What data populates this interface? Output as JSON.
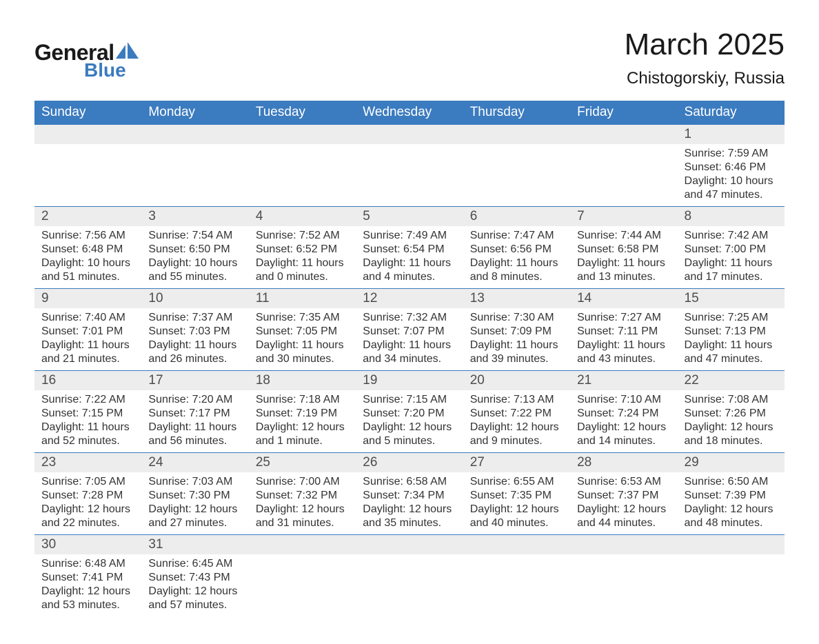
{
  "brand": {
    "name_part1": "General",
    "name_part2": "Blue",
    "logo_color": "#3b7bbf",
    "text_color": "#1a1a1a"
  },
  "title": {
    "month_year": "March 2025",
    "location": "Chistogorskiy, Russia",
    "title_fontsize": 44,
    "location_fontsize": 24
  },
  "colors": {
    "header_bg": "#3b7bbf",
    "header_text": "#ffffff",
    "daynum_bg": "#ededed",
    "daynum_text": "#4d4d4d",
    "body_text": "#333333",
    "row_border": "#3b7bbf",
    "page_bg": "#ffffff"
  },
  "weekdays": [
    "Sunday",
    "Monday",
    "Tuesday",
    "Wednesday",
    "Thursday",
    "Friday",
    "Saturday"
  ],
  "labels": {
    "sunrise": "Sunrise:",
    "sunset": "Sunset:",
    "daylight": "Daylight:"
  },
  "weeks": [
    [
      null,
      null,
      null,
      null,
      null,
      null,
      {
        "day": "1",
        "sunrise": "7:59 AM",
        "sunset": "6:46 PM",
        "daylight": "10 hours and 47 minutes."
      }
    ],
    [
      {
        "day": "2",
        "sunrise": "7:56 AM",
        "sunset": "6:48 PM",
        "daylight": "10 hours and 51 minutes."
      },
      {
        "day": "3",
        "sunrise": "7:54 AM",
        "sunset": "6:50 PM",
        "daylight": "10 hours and 55 minutes."
      },
      {
        "day": "4",
        "sunrise": "7:52 AM",
        "sunset": "6:52 PM",
        "daylight": "11 hours and 0 minutes."
      },
      {
        "day": "5",
        "sunrise": "7:49 AM",
        "sunset": "6:54 PM",
        "daylight": "11 hours and 4 minutes."
      },
      {
        "day": "6",
        "sunrise": "7:47 AM",
        "sunset": "6:56 PM",
        "daylight": "11 hours and 8 minutes."
      },
      {
        "day": "7",
        "sunrise": "7:44 AM",
        "sunset": "6:58 PM",
        "daylight": "11 hours and 13 minutes."
      },
      {
        "day": "8",
        "sunrise": "7:42 AM",
        "sunset": "7:00 PM",
        "daylight": "11 hours and 17 minutes."
      }
    ],
    [
      {
        "day": "9",
        "sunrise": "7:40 AM",
        "sunset": "7:01 PM",
        "daylight": "11 hours and 21 minutes."
      },
      {
        "day": "10",
        "sunrise": "7:37 AM",
        "sunset": "7:03 PM",
        "daylight": "11 hours and 26 minutes."
      },
      {
        "day": "11",
        "sunrise": "7:35 AM",
        "sunset": "7:05 PM",
        "daylight": "11 hours and 30 minutes."
      },
      {
        "day": "12",
        "sunrise": "7:32 AM",
        "sunset": "7:07 PM",
        "daylight": "11 hours and 34 minutes."
      },
      {
        "day": "13",
        "sunrise": "7:30 AM",
        "sunset": "7:09 PM",
        "daylight": "11 hours and 39 minutes."
      },
      {
        "day": "14",
        "sunrise": "7:27 AM",
        "sunset": "7:11 PM",
        "daylight": "11 hours and 43 minutes."
      },
      {
        "day": "15",
        "sunrise": "7:25 AM",
        "sunset": "7:13 PM",
        "daylight": "11 hours and 47 minutes."
      }
    ],
    [
      {
        "day": "16",
        "sunrise": "7:22 AM",
        "sunset": "7:15 PM",
        "daylight": "11 hours and 52 minutes."
      },
      {
        "day": "17",
        "sunrise": "7:20 AM",
        "sunset": "7:17 PM",
        "daylight": "11 hours and 56 minutes."
      },
      {
        "day": "18",
        "sunrise": "7:18 AM",
        "sunset": "7:19 PM",
        "daylight": "12 hours and 1 minute."
      },
      {
        "day": "19",
        "sunrise": "7:15 AM",
        "sunset": "7:20 PM",
        "daylight": "12 hours and 5 minutes."
      },
      {
        "day": "20",
        "sunrise": "7:13 AM",
        "sunset": "7:22 PM",
        "daylight": "12 hours and 9 minutes."
      },
      {
        "day": "21",
        "sunrise": "7:10 AM",
        "sunset": "7:24 PM",
        "daylight": "12 hours and 14 minutes."
      },
      {
        "day": "22",
        "sunrise": "7:08 AM",
        "sunset": "7:26 PM",
        "daylight": "12 hours and 18 minutes."
      }
    ],
    [
      {
        "day": "23",
        "sunrise": "7:05 AM",
        "sunset": "7:28 PM",
        "daylight": "12 hours and 22 minutes."
      },
      {
        "day": "24",
        "sunrise": "7:03 AM",
        "sunset": "7:30 PM",
        "daylight": "12 hours and 27 minutes."
      },
      {
        "day": "25",
        "sunrise": "7:00 AM",
        "sunset": "7:32 PM",
        "daylight": "12 hours and 31 minutes."
      },
      {
        "day": "26",
        "sunrise": "6:58 AM",
        "sunset": "7:34 PM",
        "daylight": "12 hours and 35 minutes."
      },
      {
        "day": "27",
        "sunrise": "6:55 AM",
        "sunset": "7:35 PM",
        "daylight": "12 hours and 40 minutes."
      },
      {
        "day": "28",
        "sunrise": "6:53 AM",
        "sunset": "7:37 PM",
        "daylight": "12 hours and 44 minutes."
      },
      {
        "day": "29",
        "sunrise": "6:50 AM",
        "sunset": "7:39 PM",
        "daylight": "12 hours and 48 minutes."
      }
    ],
    [
      {
        "day": "30",
        "sunrise": "6:48 AM",
        "sunset": "7:41 PM",
        "daylight": "12 hours and 53 minutes."
      },
      {
        "day": "31",
        "sunrise": "6:45 AM",
        "sunset": "7:43 PM",
        "daylight": "12 hours and 57 minutes."
      },
      null,
      null,
      null,
      null,
      null
    ]
  ]
}
